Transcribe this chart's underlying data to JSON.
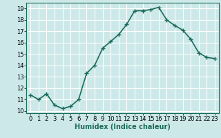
{
  "xlabel": "Humidex (Indice chaleur)",
  "x": [
    0,
    1,
    2,
    3,
    4,
    5,
    6,
    7,
    8,
    9,
    10,
    11,
    12,
    13,
    14,
    15,
    16,
    17,
    18,
    19,
    20,
    21,
    22,
    23
  ],
  "y": [
    11.4,
    11.0,
    11.5,
    10.5,
    10.2,
    10.4,
    11.0,
    13.3,
    14.0,
    15.5,
    16.1,
    16.7,
    17.6,
    18.8,
    18.8,
    18.9,
    19.1,
    18.0,
    17.5,
    17.1,
    16.3,
    15.1,
    14.7,
    14.6
  ],
  "line_color": "#1a6b5a",
  "marker": "+",
  "marker_size": 4,
  "background_color": "#cce8e8",
  "grid_color": "#ffffff",
  "ylim": [
    9.8,
    19.5
  ],
  "yticks": [
    10,
    11,
    12,
    13,
    14,
    15,
    16,
    17,
    18,
    19
  ],
  "xlim": [
    -0.5,
    23.5
  ],
  "xticks": [
    0,
    1,
    2,
    3,
    4,
    5,
    6,
    7,
    8,
    9,
    10,
    11,
    12,
    13,
    14,
    15,
    16,
    17,
    18,
    19,
    20,
    21,
    22,
    23
  ],
  "xlabel_fontsize": 7,
  "tick_fontsize": 6,
  "line_width": 1.2
}
